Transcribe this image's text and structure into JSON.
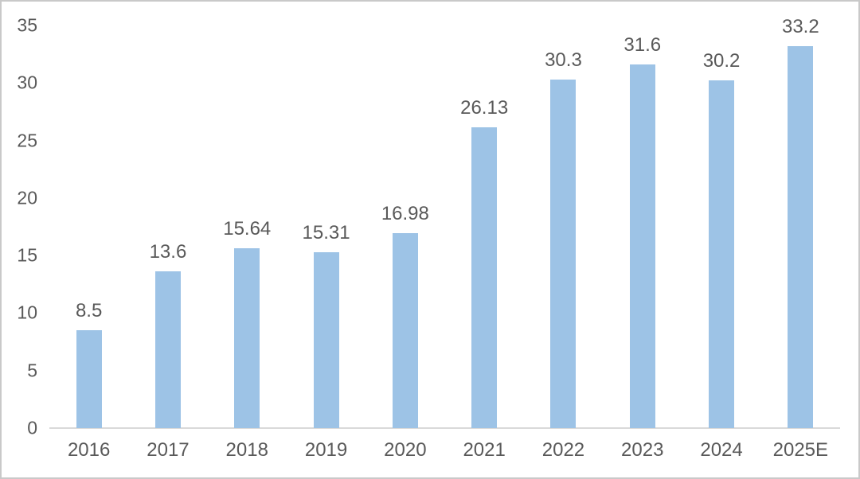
{
  "chart_data": {
    "type": "bar",
    "title": "",
    "xlabel": "",
    "ylabel": "",
    "categories": [
      "2016",
      "2017",
      "2018",
      "2019",
      "2020",
      "2021",
      "2022",
      "2023",
      "2024",
      "2025E"
    ],
    "values": [
      8.5,
      13.6,
      15.64,
      15.31,
      16.98,
      26.13,
      30.3,
      31.6,
      30.2,
      33.2
    ],
    "data_labels": [
      "8.5",
      "13.6",
      "15.64",
      "15.31",
      "16.98",
      "26.13",
      "30.3",
      "31.6",
      "30.2",
      "33.2"
    ],
    "yticks": [
      0,
      5,
      10,
      15,
      20,
      25,
      30,
      35
    ],
    "ylim": [
      0,
      35
    ],
    "grid": false,
    "legend": false,
    "bar_color": "#9DC3E6",
    "axis_line_color": "#D9D9D9",
    "text_color": "#595959",
    "frame_border_color": "#C9C9C9"
  }
}
